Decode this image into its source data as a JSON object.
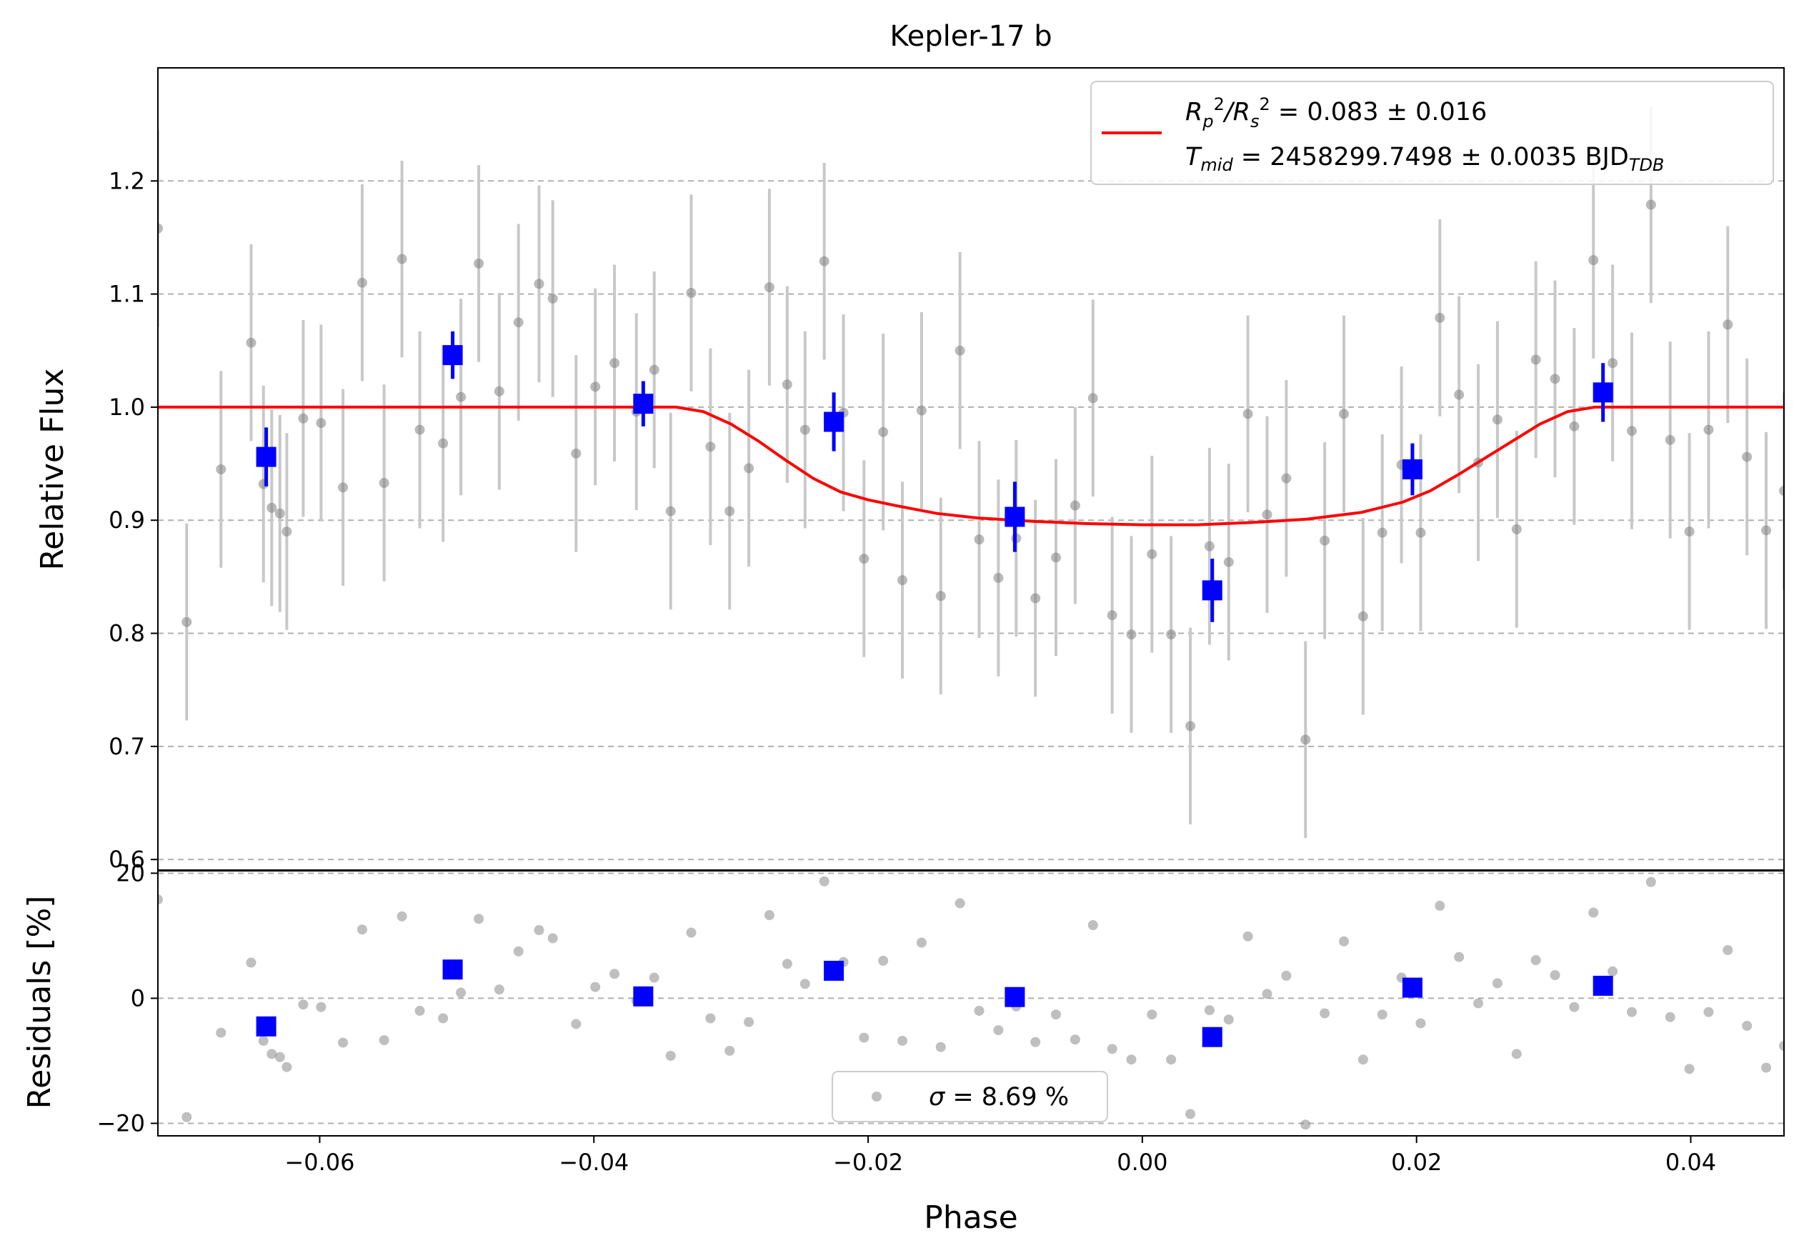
{
  "chart_data": [
    {
      "type": "scatter",
      "title": "Kepler-17 b",
      "xlabel": "",
      "ylabel": "Relative Flux",
      "xlim": [
        -0.0718,
        0.0468
      ],
      "ylim": [
        0.59,
        1.3
      ],
      "x_ticks": [
        -0.06,
        -0.04,
        -0.02,
        0.0,
        0.02,
        0.04
      ],
      "x_tick_labels": [
        "−0.06",
        "−0.04",
        "−0.02",
        "0.00",
        "0.02",
        "0.04"
      ],
      "y_ticks": [
        0.6,
        0.7,
        0.8,
        0.9,
        1.0,
        1.1,
        1.2
      ],
      "y_tick_labels": [
        "0.6",
        "0.7",
        "0.8",
        "0.9",
        "1.0",
        "1.1",
        "1.2"
      ],
      "grid": "horizontal dashed",
      "legend_position": "top-right",
      "legend": {
        "line1_base": "R",
        "line1_sub1": "p",
        "line1_sup1": "2",
        "line1_slash": "/R",
        "line1_sub2": "s",
        "line1_sup2": "2",
        "line1_rest": " = 0.083 ± 0.016",
        "line2_base": "T",
        "line2_sub": "mid",
        "line2_rest": " = 2458299.7498 ± 0.0035 BJD",
        "line2_unit_sub": "TDB"
      },
      "colors": {
        "data": "#808080",
        "errorbar": "#c8c8c8",
        "binned": "#0000ff",
        "model": "#ff0000",
        "grid": "#b0b0b0"
      },
      "series": [
        {
          "kind": "data",
          "err": 0.087,
          "points": [
            [
              -0.0718,
              1.158
            ],
            [
              -0.0697,
              0.81
            ],
            [
              -0.0672,
              0.945
            ],
            [
              -0.065,
              1.057
            ],
            [
              -0.0641,
              0.932
            ],
            [
              -0.0635,
              0.911
            ],
            [
              -0.0629,
              0.906
            ],
            [
              -0.0624,
              0.89
            ],
            [
              -0.0612,
              0.99
            ],
            [
              -0.0599,
              0.986
            ],
            [
              -0.0583,
              0.929
            ],
            [
              -0.0569,
              1.11
            ],
            [
              -0.0553,
              0.933
            ],
            [
              -0.054,
              1.131
            ],
            [
              -0.0527,
              0.98
            ],
            [
              -0.051,
              0.968
            ],
            [
              -0.0497,
              1.009
            ],
            [
              -0.0484,
              1.127
            ],
            [
              -0.0469,
              1.014
            ],
            [
              -0.0455,
              1.075
            ],
            [
              -0.044,
              1.109
            ],
            [
              -0.043,
              1.096
            ],
            [
              -0.0413,
              0.959
            ],
            [
              -0.0399,
              1.018
            ],
            [
              -0.0385,
              1.039
            ],
            [
              -0.0369,
              0.996
            ],
            [
              -0.0356,
              1.033
            ],
            [
              -0.0344,
              0.908
            ],
            [
              -0.0329,
              1.101
            ],
            [
              -0.0315,
              0.965
            ],
            [
              -0.0301,
              0.908
            ],
            [
              -0.0287,
              0.946
            ],
            [
              -0.0272,
              1.106
            ],
            [
              -0.0259,
              1.02
            ],
            [
              -0.0246,
              0.98
            ],
            [
              -0.0232,
              1.129
            ],
            [
              -0.0218,
              0.995
            ],
            [
              -0.0203,
              0.866
            ],
            [
              -0.0189,
              0.978
            ],
            [
              -0.0175,
              0.847
            ],
            [
              -0.0161,
              0.997
            ],
            [
              -0.0147,
              0.833
            ],
            [
              -0.0133,
              1.05
            ],
            [
              -0.0119,
              0.883
            ],
            [
              -0.0105,
              0.849
            ],
            [
              -0.0092,
              0.884
            ],
            [
              -0.0078,
              0.831
            ],
            [
              -0.0063,
              0.867
            ],
            [
              -0.0049,
              0.913
            ],
            [
              -0.0036,
              1.008
            ],
            [
              -0.0022,
              0.816
            ],
            [
              -0.0008,
              0.799
            ],
            [
              0.0007,
              0.87
            ],
            [
              0.0021,
              0.799
            ],
            [
              0.0035,
              0.718
            ],
            [
              0.0049,
              0.877
            ],
            [
              0.0063,
              0.863
            ],
            [
              0.0077,
              0.994
            ],
            [
              0.0091,
              0.905
            ],
            [
              0.0105,
              0.937
            ],
            [
              0.0119,
              0.706
            ],
            [
              0.0133,
              0.882
            ],
            [
              0.0147,
              0.994
            ],
            [
              0.0161,
              0.815
            ],
            [
              0.0175,
              0.889
            ],
            [
              0.0189,
              0.949
            ],
            [
              0.0203,
              0.889
            ],
            [
              0.0217,
              1.079
            ],
            [
              0.0231,
              1.011
            ],
            [
              0.0245,
              0.951
            ],
            [
              0.0259,
              0.989
            ],
            [
              0.0273,
              0.892
            ],
            [
              0.0287,
              1.042
            ],
            [
              0.0301,
              1.025
            ],
            [
              0.0315,
              0.983
            ],
            [
              0.0329,
              1.13
            ],
            [
              0.0343,
              1.039
            ],
            [
              0.0357,
              0.979
            ],
            [
              0.0371,
              1.179
            ],
            [
              0.0385,
              0.971
            ],
            [
              0.0399,
              0.89
            ],
            [
              0.0413,
              0.98
            ],
            [
              0.0427,
              1.073
            ],
            [
              0.0441,
              0.956
            ],
            [
              0.0455,
              0.891
            ],
            [
              0.0468,
              0.926
            ]
          ]
        },
        {
          "kind": "binned",
          "points": [
            [
              -0.0639,
              0.956,
              0.026
            ],
            [
              -0.0503,
              1.046,
              0.021
            ],
            [
              -0.0364,
              1.003,
              0.02
            ],
            [
              -0.0225,
              0.987,
              0.026
            ],
            [
              -0.0093,
              0.903,
              0.031
            ],
            [
              0.0051,
              0.838,
              0.028
            ],
            [
              0.0197,
              0.945,
              0.023
            ],
            [
              0.0336,
              1.013,
              0.026
            ]
          ]
        },
        {
          "kind": "model",
          "points": [
            [
              -0.0718,
              1.0
            ],
            [
              -0.034,
              1.0
            ],
            [
              -0.032,
              0.996
            ],
            [
              -0.03,
              0.985
            ],
            [
              -0.028,
              0.97
            ],
            [
              -0.026,
              0.953
            ],
            [
              -0.024,
              0.937
            ],
            [
              -0.022,
              0.925
            ],
            [
              -0.02,
              0.918
            ],
            [
              -0.018,
              0.913
            ],
            [
              -0.015,
              0.906
            ],
            [
              -0.012,
              0.902
            ],
            [
              -0.008,
              0.899
            ],
            [
              -0.004,
              0.897
            ],
            [
              0.0,
              0.896
            ],
            [
              0.004,
              0.896
            ],
            [
              0.008,
              0.898
            ],
            [
              0.012,
              0.901
            ],
            [
              0.016,
              0.907
            ],
            [
              0.019,
              0.916
            ],
            [
              0.021,
              0.926
            ],
            [
              0.023,
              0.94
            ],
            [
              0.025,
              0.955
            ],
            [
              0.027,
              0.97
            ],
            [
              0.029,
              0.985
            ],
            [
              0.031,
              0.996
            ],
            [
              0.033,
              1.0
            ],
            [
              0.0468,
              1.0
            ]
          ]
        }
      ]
    },
    {
      "type": "scatter",
      "title": "",
      "xlabel": "Phase",
      "ylabel": "Residuals [%]",
      "xlim": [
        -0.0718,
        0.0468
      ],
      "ylim": [
        -22,
        20.5
      ],
      "y_ticks": [
        -20,
        0,
        20
      ],
      "y_tick_labels": [
        "−20",
        "0",
        "20"
      ],
      "grid": "horizontal dashed",
      "legend_position": "bottom-center",
      "legend": {
        "sigma_symbol": "σ",
        "sigma_rest": " = 8.69 %"
      },
      "series": [
        {
          "kind": "residuals",
          "points": [
            [
              -0.0718,
              15.8
            ],
            [
              -0.0697,
              -19.0
            ],
            [
              -0.0672,
              -5.5
            ],
            [
              -0.065,
              5.7
            ],
            [
              -0.0641,
              -6.8
            ],
            [
              -0.0635,
              -8.9
            ],
            [
              -0.0629,
              -9.4
            ],
            [
              -0.0624,
              -11.0
            ],
            [
              -0.0612,
              -1.0
            ],
            [
              -0.0599,
              -1.4
            ],
            [
              -0.0583,
              -7.1
            ],
            [
              -0.0569,
              11.0
            ],
            [
              -0.0553,
              -6.7
            ],
            [
              -0.054,
              13.1
            ],
            [
              -0.0527,
              -2.0
            ],
            [
              -0.051,
              -3.2
            ],
            [
              -0.0497,
              0.9
            ],
            [
              -0.0484,
              12.7
            ],
            [
              -0.0469,
              1.4
            ],
            [
              -0.0455,
              7.5
            ],
            [
              -0.044,
              10.9
            ],
            [
              -0.043,
              9.6
            ],
            [
              -0.0413,
              -4.1
            ],
            [
              -0.0399,
              1.8
            ],
            [
              -0.0385,
              3.9
            ],
            [
              -0.0369,
              -0.4
            ],
            [
              -0.0356,
              3.3
            ],
            [
              -0.0344,
              -9.2
            ],
            [
              -0.0329,
              10.5
            ],
            [
              -0.0315,
              -3.2
            ],
            [
              -0.0301,
              -8.4
            ],
            [
              -0.0287,
              -3.8
            ],
            [
              -0.0272,
              13.3
            ],
            [
              -0.0259,
              5.5
            ],
            [
              -0.0246,
              2.3
            ],
            [
              -0.0232,
              18.7
            ],
            [
              -0.0218,
              5.8
            ],
            [
              -0.0203,
              -6.3
            ],
            [
              -0.0189,
              6.0
            ],
            [
              -0.0175,
              -6.8
            ],
            [
              -0.0161,
              8.9
            ],
            [
              -0.0147,
              -7.8
            ],
            [
              -0.0133,
              15.2
            ],
            [
              -0.0119,
              -2.0
            ],
            [
              -0.0105,
              -5.1
            ],
            [
              -0.0092,
              -1.3
            ],
            [
              -0.0078,
              -7.0
            ],
            [
              -0.0063,
              -2.6
            ],
            [
              -0.0049,
              -6.6
            ],
            [
              -0.0036,
              11.7
            ],
            [
              -0.0022,
              -8.1
            ],
            [
              -0.0008,
              -9.8
            ],
            [
              0.0007,
              -2.6
            ],
            [
              0.0021,
              -9.8
            ],
            [
              0.0035,
              -18.5
            ],
            [
              0.0049,
              -1.9
            ],
            [
              0.0063,
              -3.4
            ],
            [
              0.0077,
              9.9
            ],
            [
              0.0091,
              0.7
            ],
            [
              0.0105,
              3.6
            ],
            [
              0.0119,
              -20.2
            ],
            [
              0.0133,
              -2.4
            ],
            [
              0.0147,
              9.1
            ],
            [
              0.0161,
              -9.8
            ],
            [
              0.0175,
              -2.6
            ],
            [
              0.0189,
              3.3
            ],
            [
              0.0203,
              -4.0
            ],
            [
              0.0217,
              14.8
            ],
            [
              0.0231,
              6.6
            ],
            [
              0.0245,
              -0.8
            ],
            [
              0.0259,
              2.4
            ],
            [
              0.0273,
              -8.9
            ],
            [
              0.0287,
              6.1
            ],
            [
              0.0301,
              3.7
            ],
            [
              0.0315,
              -1.4
            ],
            [
              0.0329,
              13.7
            ],
            [
              0.0343,
              4.3
            ],
            [
              0.0357,
              -2.2
            ],
            [
              0.0371,
              18.6
            ],
            [
              0.0385,
              -3.0
            ],
            [
              0.0399,
              -11.3
            ],
            [
              0.0413,
              -2.2
            ],
            [
              0.0427,
              7.7
            ],
            [
              0.0441,
              -4.4
            ],
            [
              0.0455,
              -11.1
            ],
            [
              0.0468,
              -7.6
            ]
          ]
        },
        {
          "kind": "binned_residuals",
          "points": [
            [
              -0.0639,
              -4.5
            ],
            [
              -0.0503,
              4.6
            ],
            [
              -0.0364,
              0.3
            ],
            [
              -0.0225,
              4.4
            ],
            [
              -0.0093,
              0.2
            ],
            [
              0.0051,
              -6.2
            ],
            [
              0.0197,
              1.7
            ],
            [
              0.0336,
              2.0
            ]
          ]
        }
      ]
    }
  ]
}
